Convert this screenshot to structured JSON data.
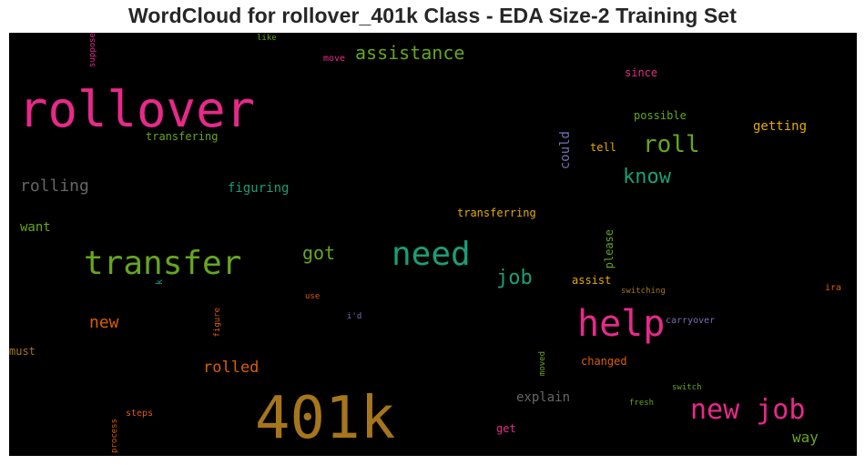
{
  "title": "WordCloud for rollover_401k Class - EDA Size-2 Training Set",
  "words": [
    {
      "text": "401k",
      "color": "#a6761d",
      "vertical": false
    },
    {
      "text": "rollover",
      "color": "#e7298a",
      "vertical": false
    },
    {
      "text": "help",
      "color": "#e7298a",
      "vertical": false
    },
    {
      "text": "need",
      "color": "#1b9e77",
      "vertical": false
    },
    {
      "text": "transfer",
      "color": "#66a61e",
      "vertical": false
    },
    {
      "text": "new job",
      "color": "#e7298a",
      "vertical": false
    },
    {
      "text": "assistance",
      "color": "#66a61e",
      "vertical": false
    },
    {
      "text": "roll",
      "color": "#66a61e",
      "vertical": false
    },
    {
      "text": "know",
      "color": "#1b9e77",
      "vertical": false
    },
    {
      "text": "rolling",
      "color": "#666666",
      "vertical": false
    },
    {
      "text": "got",
      "color": "#66a61e",
      "vertical": false
    },
    {
      "text": "job",
      "color": "#1b9e77",
      "vertical": false
    },
    {
      "text": "new",
      "color": "#d95f02",
      "vertical": false
    },
    {
      "text": "rolled",
      "color": "#d95f02",
      "vertical": false
    },
    {
      "text": "explain",
      "color": "#666666",
      "vertical": false
    },
    {
      "text": "way",
      "color": "#66a61e",
      "vertical": false
    },
    {
      "text": "figuring",
      "color": "#1b9e77",
      "vertical": false
    },
    {
      "text": "getting",
      "color": "#e6ab02",
      "vertical": false
    },
    {
      "text": "could",
      "color": "#7570b3",
      "vertical": true
    },
    {
      "text": "transfering",
      "color": "#66a61e",
      "vertical": false
    },
    {
      "text": "want",
      "color": "#66a61e",
      "vertical": false
    },
    {
      "text": "transferring",
      "color": "#e6ab02",
      "vertical": false
    },
    {
      "text": "possible",
      "color": "#66a61e",
      "vertical": false
    },
    {
      "text": "since",
      "color": "#e7298a",
      "vertical": false
    },
    {
      "text": "tell",
      "color": "#e6ab02",
      "vertical": false
    },
    {
      "text": "please",
      "color": "#66a61e",
      "vertical": true
    },
    {
      "text": "assist",
      "color": "#e6ab02",
      "vertical": false
    },
    {
      "text": "changed",
      "color": "#d95f02",
      "vertical": false
    },
    {
      "text": "must",
      "color": "#a6761d",
      "vertical": false
    },
    {
      "text": "get",
      "color": "#e7298a",
      "vertical": false
    },
    {
      "text": "like",
      "color": "#66a61e",
      "vertical": false
    },
    {
      "text": "move",
      "color": "#e7298a",
      "vertical": false
    },
    {
      "text": "suppose",
      "color": "#e7298a",
      "vertical": true
    },
    {
      "text": "k",
      "color": "#1b9e77",
      "vertical": true
    },
    {
      "text": "use",
      "color": "#d95f02",
      "vertical": false
    },
    {
      "text": "i'd",
      "color": "#7570b3",
      "vertical": false
    },
    {
      "text": "figure",
      "color": "#d95f02",
      "vertical": true
    },
    {
      "text": "switching",
      "color": "#a6761d",
      "vertical": false
    },
    {
      "text": "carryover",
      "color": "#7570b3",
      "vertical": false
    },
    {
      "text": "ira",
      "color": "#d95f02",
      "vertical": false
    },
    {
      "text": "moved",
      "color": "#66a61e",
      "vertical": true
    },
    {
      "text": "switch",
      "color": "#66a61e",
      "vertical": false
    },
    {
      "text": "fresh",
      "color": "#66a61e",
      "vertical": false
    },
    {
      "text": "steps",
      "color": "#d95f02",
      "vertical": false
    },
    {
      "text": "process",
      "color": "#d95f02",
      "vertical": true
    }
  ]
}
